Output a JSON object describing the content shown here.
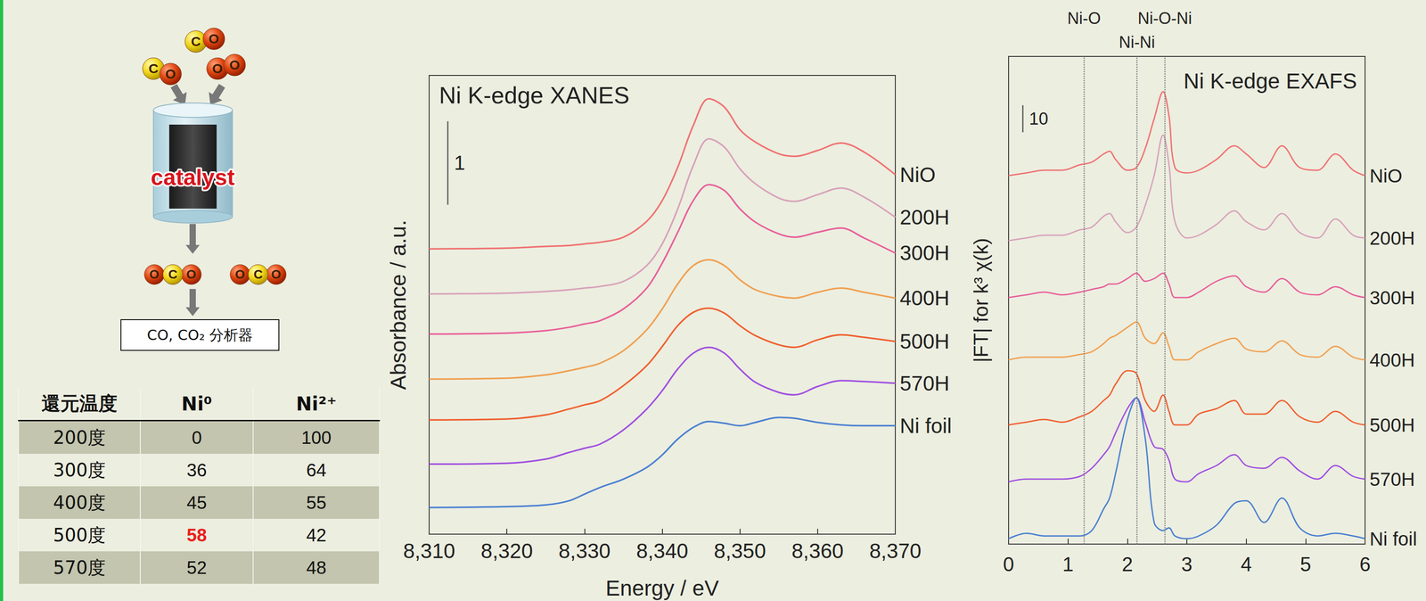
{
  "diagram": {
    "reactants": [
      [
        "C",
        "O"
      ],
      [
        "C",
        "O"
      ],
      [
        "O",
        "O"
      ]
    ],
    "catalyst": "catalyst",
    "products": [
      [
        "O",
        "C",
        "O"
      ],
      [
        "O",
        "C",
        "O"
      ]
    ],
    "analyzer": "CO, CO₂ 分析器"
  },
  "table": {
    "header": [
      "還元温度",
      "Ni⁰",
      "Ni²⁺"
    ],
    "rows": [
      [
        "200度",
        0,
        100
      ],
      [
        "300度",
        36,
        64
      ],
      [
        "400度",
        45,
        55
      ],
      [
        "500度",
        {
          "value": 58,
          "color": "#e8201c"
        },
        42
      ],
      [
        "570度",
        52,
        48
      ]
    ]
  },
  "chart_data": [
    {
      "type": "line",
      "title": "Ni K-edge XANES",
      "x_label": "Energy / eV",
      "y_label": "Absorbance / a.u.",
      "x": [
        8310,
        8320,
        8325,
        8328,
        8330,
        8332,
        8335,
        8338,
        8340,
        8342,
        8344,
        8346,
        8348,
        8350,
        8352,
        8355,
        8357,
        8360,
        8363,
        8366,
        8370
      ],
      "series": [
        {
          "name": "NiO",
          "color": "#f07272",
          "values": [
            3.42,
            3.43,
            3.45,
            3.46,
            3.48,
            3.5,
            3.56,
            3.75,
            4.0,
            4.4,
            4.9,
            5.22,
            5.12,
            4.85,
            4.7,
            4.56,
            4.53,
            4.6,
            4.69,
            4.58,
            4.31
          ]
        },
        {
          "name": "200H",
          "color": "#d8a2ba",
          "values": [
            2.88,
            2.89,
            2.91,
            2.93,
            2.95,
            2.97,
            3.03,
            3.22,
            3.48,
            3.9,
            4.42,
            4.74,
            4.64,
            4.38,
            4.2,
            4.03,
            3.99,
            4.07,
            4.15,
            4.04,
            3.8
          ]
        },
        {
          "name": "300H",
          "color": "#e8609a",
          "values": [
            2.4,
            2.41,
            2.44,
            2.48,
            2.52,
            2.56,
            2.7,
            2.95,
            3.25,
            3.62,
            4.0,
            4.19,
            4.12,
            3.9,
            3.74,
            3.6,
            3.56,
            3.62,
            3.67,
            3.55,
            3.37
          ]
        },
        {
          "name": "400H",
          "color": "#f0a050",
          "values": [
            1.86,
            1.87,
            1.91,
            1.96,
            2.0,
            2.05,
            2.2,
            2.45,
            2.7,
            3.0,
            3.22,
            3.29,
            3.22,
            3.05,
            2.93,
            2.85,
            2.83,
            2.9,
            2.95,
            2.9,
            2.83
          ]
        },
        {
          "name": "500H",
          "color": "#f06030",
          "values": [
            1.37,
            1.38,
            1.43,
            1.5,
            1.55,
            1.6,
            1.78,
            2.02,
            2.25,
            2.5,
            2.66,
            2.71,
            2.65,
            2.5,
            2.38,
            2.27,
            2.24,
            2.33,
            2.39,
            2.36,
            2.31
          ]
        },
        {
          "name": "570H",
          "color": "#a050e0",
          "values": [
            0.84,
            0.85,
            0.9,
            0.98,
            1.03,
            1.08,
            1.25,
            1.5,
            1.72,
            1.98,
            2.17,
            2.24,
            2.17,
            1.98,
            1.82,
            1.7,
            1.67,
            1.77,
            1.84,
            1.83,
            1.81
          ]
        },
        {
          "name": "Ni foil",
          "color": "#4a80d0",
          "values": [
            0.32,
            0.33,
            0.35,
            0.4,
            0.48,
            0.56,
            0.66,
            0.8,
            0.95,
            1.14,
            1.28,
            1.35,
            1.33,
            1.3,
            1.34,
            1.4,
            1.39,
            1.34,
            1.31,
            1.3,
            1.3
          ]
        }
      ],
      "xlim": [
        8310,
        8370
      ],
      "xticks": [
        8310,
        8320,
        8330,
        8340,
        8350,
        8360,
        8370
      ],
      "ylim": [
        0,
        5.5
      ],
      "tick_labels": "x",
      "grid": false,
      "scale_bar": 1
    },
    {
      "type": "line",
      "title": "Ni K-edge EXAFS",
      "y_label": "|FT| for k³ χ(k)",
      "x": [
        0,
        0.3,
        0.6,
        0.9,
        1.2,
        1.4,
        1.6,
        1.7,
        1.8,
        2.0,
        2.15,
        2.3,
        2.45,
        2.6,
        2.7,
        2.8,
        3.0,
        3.2,
        3.5,
        3.8,
        4.0,
        4.3,
        4.6,
        4.9,
        5.2,
        5.5,
        5.8,
        6.0
      ],
      "series": [
        {
          "name": "NiO",
          "color": "#f07272",
          "values": [
            136,
            137,
            138,
            138,
            140,
            141,
            144,
            145,
            142,
            138,
            139,
            146,
            157,
            167,
            158,
            139,
            137,
            138,
            142,
            147,
            144,
            139,
            147,
            139,
            138,
            144,
            138,
            136
          ]
        },
        {
          "name": "200H",
          "color": "#d8a2ba",
          "values": [
            112,
            113,
            114,
            114,
            116,
            117,
            121,
            122,
            119,
            115,
            117,
            125,
            136,
            151,
            140,
            119,
            113,
            114,
            118,
            123,
            119,
            116,
            122,
            115,
            113,
            120,
            114,
            113
          ]
        },
        {
          "name": "300H",
          "color": "#e8609a",
          "values": [
            91,
            92,
            93,
            92,
            93,
            94,
            95,
            96,
            96,
            98,
            100,
            97,
            98,
            100,
            96,
            91,
            91,
            93,
            97,
            99,
            95,
            93,
            98,
            93,
            92,
            95,
            92,
            91
          ]
        },
        {
          "name": "400H",
          "color": "#f0a050",
          "values": [
            68,
            69,
            69,
            69,
            70,
            71,
            74,
            76,
            77,
            80,
            82,
            76,
            74,
            78,
            73,
            68,
            68,
            71,
            74,
            76,
            72,
            71,
            75,
            70,
            69,
            73,
            69,
            68
          ]
        },
        {
          "name": "500H",
          "color": "#f06030",
          "values": [
            44,
            45,
            46,
            45,
            47,
            49,
            53,
            55,
            59,
            64,
            63,
            53,
            49,
            55,
            49,
            44,
            44,
            48,
            50,
            53,
            48,
            48,
            53,
            47,
            45,
            49,
            45,
            44
          ]
        },
        {
          "name": "570H",
          "color": "#a050e0",
          "values": [
            23,
            24,
            24,
            24,
            25,
            28,
            33,
            36,
            41,
            50,
            54,
            45,
            36,
            35,
            31,
            24,
            23,
            26,
            29,
            33,
            29,
            28,
            32,
            27,
            24,
            29,
            25,
            24
          ]
        },
        {
          "name": "Ni foil",
          "color": "#4a80d0",
          "values": [
            2,
            4,
            3,
            3,
            3,
            5,
            13,
            17,
            26,
            46,
            54,
            39,
            8,
            5,
            6,
            3,
            2,
            3,
            7,
            15,
            16,
            8,
            17,
            6,
            3,
            4,
            3,
            2
          ]
        }
      ],
      "xlim": [
        0,
        6
      ],
      "xticks": [
        0,
        1,
        2,
        3,
        4,
        5,
        6
      ],
      "ylim": [
        0,
        180
      ],
      "tick_labels": "x",
      "grid": false,
      "scale_bar": 10,
      "annotations": [
        {
          "x": 1.27,
          "label": "Ni-O",
          "line_style": "dotted"
        },
        {
          "x": 2.16,
          "label": "Ni-Ni",
          "line_style": "dotted"
        },
        {
          "x": 2.63,
          "label": "Ni-O-Ni",
          "line_style": "dotted"
        }
      ]
    }
  ]
}
